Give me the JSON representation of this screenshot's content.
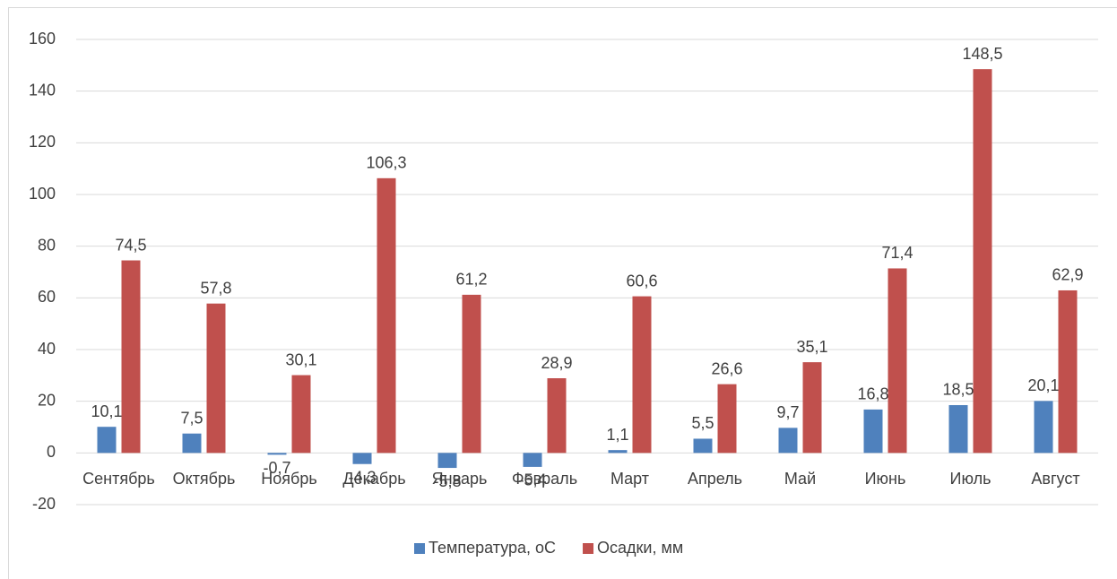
{
  "chart_data": {
    "type": "bar",
    "categories": [
      "Сентябрь",
      "Октябрь",
      "Ноябрь",
      "Декабрь",
      "Январь",
      "Февраль",
      "Март",
      "Апрель",
      "Май",
      "Июнь",
      "Июль",
      "Август"
    ],
    "series": [
      {
        "name": "Температура, oC",
        "color": "#4f81bd",
        "values": [
          10.1,
          7.5,
          -0.7,
          -4.3,
          -5.8,
          -5.4,
          1.1,
          5.5,
          9.7,
          16.8,
          18.5,
          20.1
        ],
        "value_labels": [
          "10,1",
          "7,5",
          "-0,7",
          "-4,3",
          "-5,8",
          "-5,4",
          "1,1",
          "5,5",
          "9,7",
          "16,8",
          "18,5",
          "20,1"
        ]
      },
      {
        "name": "Осадки, мм",
        "color": "#c0504d",
        "values": [
          74.5,
          57.8,
          30.1,
          106.3,
          61.2,
          28.9,
          60.6,
          26.6,
          35.1,
          71.4,
          148.5,
          62.9
        ],
        "value_labels": [
          "74,5",
          "57,8",
          "30,1",
          "106,3",
          "61,2",
          "28,9",
          "60,6",
          "26,6",
          "35,1",
          "71,4",
          "148,5",
          "62,9"
        ]
      }
    ],
    "ylim": [
      -20,
      160
    ],
    "yticks": [
      -20,
      0,
      20,
      40,
      60,
      80,
      100,
      120,
      140,
      160
    ],
    "grid": true,
    "legend": "bottom"
  }
}
